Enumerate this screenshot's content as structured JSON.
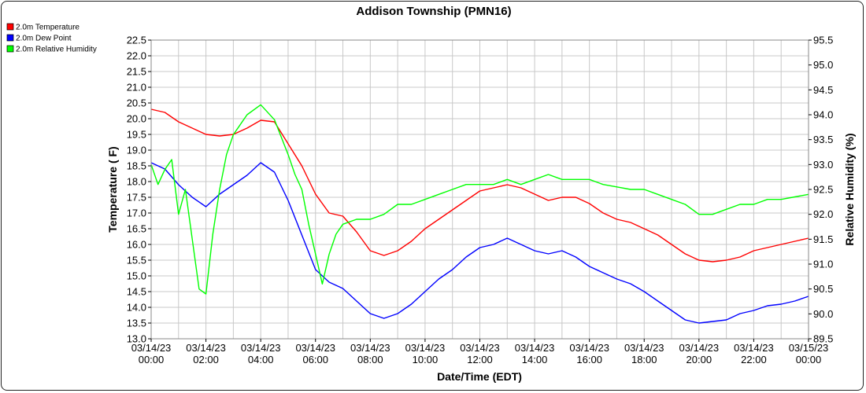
{
  "chart_data": {
    "type": "line",
    "title": "Addison Township (PMN16)",
    "xlabel": "Date/Time (EDT)",
    "ylabel_left": "Temperature ( F)",
    "ylabel_right": "Relative Humidity (%)",
    "ylim_left": [
      13.0,
      22.5
    ],
    "ylim_right": [
      89.5,
      95.5
    ],
    "y_left_ticks": [
      "13.0",
      "13.5",
      "14.0",
      "14.5",
      "15.0",
      "15.5",
      "16.0",
      "16.5",
      "17.0",
      "17.5",
      "18.0",
      "18.5",
      "19.0",
      "19.5",
      "20.0",
      "20.5",
      "21.0",
      "21.5",
      "22.0",
      "22.5"
    ],
    "y_right_ticks": [
      "89.5",
      "90.0",
      "90.5",
      "91.0",
      "91.5",
      "92.0",
      "92.5",
      "93.0",
      "93.5",
      "94.0",
      "94.5",
      "95.0",
      "95.5"
    ],
    "x_range_hours": [
      0,
      24
    ],
    "x_ticks": [
      {
        "hour": 0,
        "date": "03/14/23",
        "time": "00:00"
      },
      {
        "hour": 2,
        "date": "03/14/23",
        "time": "02:00"
      },
      {
        "hour": 4,
        "date": "03/14/23",
        "time": "04:00"
      },
      {
        "hour": 6,
        "date": "03/14/23",
        "time": "06:00"
      },
      {
        "hour": 8,
        "date": "03/14/23",
        "time": "08:00"
      },
      {
        "hour": 10,
        "date": "03/14/23",
        "time": "10:00"
      },
      {
        "hour": 12,
        "date": "03/14/23",
        "time": "12:00"
      },
      {
        "hour": 14,
        "date": "03/14/23",
        "time": "14:00"
      },
      {
        "hour": 16,
        "date": "03/14/23",
        "time": "16:00"
      },
      {
        "hour": 18,
        "date": "03/14/23",
        "time": "18:00"
      },
      {
        "hour": 20,
        "date": "03/14/23",
        "time": "20:00"
      },
      {
        "hour": 22,
        "date": "03/14/23",
        "time": "22:00"
      },
      {
        "hour": 24,
        "date": "03/15/23",
        "time": "00:00"
      }
    ],
    "grid": true,
    "legend_position": "top-left",
    "series": [
      {
        "name": "2.0m Temperature",
        "color": "#ff0000",
        "axis": "left",
        "x": [
          0,
          0.5,
          1,
          1.5,
          2,
          2.5,
          3,
          3.5,
          4,
          4.5,
          5,
          5.5,
          6,
          6.5,
          7,
          7.5,
          8,
          8.5,
          9,
          9.5,
          10,
          10.5,
          11,
          11.5,
          12,
          12.5,
          13,
          13.5,
          14,
          14.5,
          15,
          15.5,
          16,
          16.5,
          17,
          17.5,
          18,
          18.5,
          19,
          19.5,
          20,
          20.5,
          21,
          21.5,
          22,
          22.5,
          23,
          23.5,
          24
        ],
        "values": [
          20.3,
          20.2,
          19.9,
          19.7,
          19.5,
          19.45,
          19.5,
          19.7,
          19.95,
          19.9,
          19.2,
          18.5,
          17.6,
          17.0,
          16.9,
          16.4,
          15.8,
          15.65,
          15.8,
          16.1,
          16.5,
          16.8,
          17.1,
          17.4,
          17.7,
          17.8,
          17.9,
          17.8,
          17.6,
          17.4,
          17.5,
          17.5,
          17.3,
          17.0,
          16.8,
          16.7,
          16.5,
          16.3,
          16.0,
          15.7,
          15.5,
          15.45,
          15.5,
          15.6,
          15.8,
          15.9,
          16.0,
          16.1,
          16.2
        ]
      },
      {
        "name": "2.0m Dew Point",
        "color": "#0000ff",
        "axis": "left",
        "x": [
          0,
          0.5,
          1,
          1.5,
          2,
          2.5,
          3,
          3.5,
          4,
          4.5,
          5,
          5.5,
          6,
          6.5,
          7,
          7.5,
          8,
          8.5,
          9,
          9.5,
          10,
          10.5,
          11,
          11.5,
          12,
          12.5,
          13,
          13.5,
          14,
          14.5,
          15,
          15.5,
          16,
          16.5,
          17,
          17.5,
          18,
          18.5,
          19,
          19.5,
          20,
          20.5,
          21,
          21.5,
          22,
          22.5,
          23,
          23.5,
          24
        ],
        "values": [
          18.6,
          18.4,
          17.9,
          17.5,
          17.2,
          17.6,
          17.9,
          18.2,
          18.6,
          18.3,
          17.4,
          16.3,
          15.2,
          14.8,
          14.6,
          14.2,
          13.8,
          13.65,
          13.8,
          14.1,
          14.5,
          14.9,
          15.2,
          15.6,
          15.9,
          16.0,
          16.2,
          16.0,
          15.8,
          15.7,
          15.8,
          15.6,
          15.3,
          15.1,
          14.9,
          14.75,
          14.5,
          14.2,
          13.9,
          13.6,
          13.5,
          13.55,
          13.6,
          13.8,
          13.9,
          14.05,
          14.1,
          14.2,
          14.35
        ]
      },
      {
        "name": "2.0m Relative Humidity",
        "color": "#00ff00",
        "axis": "right",
        "x": [
          0,
          0.25,
          0.5,
          0.75,
          1,
          1.25,
          1.5,
          1.75,
          2,
          2.25,
          2.5,
          2.75,
          3,
          3.5,
          4,
          4.5,
          5,
          5.25,
          5.5,
          5.75,
          6,
          6.25,
          6.5,
          6.75,
          7,
          7.5,
          8,
          8.5,
          9,
          9.5,
          10,
          10.5,
          11,
          11.5,
          12,
          12.5,
          13,
          13.5,
          14,
          14.5,
          15,
          15.5,
          16,
          16.5,
          17,
          17.5,
          18,
          18.5,
          19,
          19.5,
          20,
          20.5,
          21,
          21.5,
          22,
          22.5,
          23,
          23.5,
          24
        ],
        "values": [
          93.0,
          92.6,
          92.9,
          93.1,
          92.0,
          92.5,
          91.5,
          90.5,
          90.4,
          91.6,
          92.5,
          93.2,
          93.6,
          94.0,
          94.2,
          93.9,
          93.2,
          92.8,
          92.5,
          91.8,
          91.2,
          90.6,
          91.2,
          91.6,
          91.8,
          91.9,
          91.9,
          92.0,
          92.2,
          92.2,
          92.3,
          92.4,
          92.5,
          92.6,
          92.6,
          92.6,
          92.7,
          92.6,
          92.7,
          92.8,
          92.7,
          92.7,
          92.7,
          92.6,
          92.55,
          92.5,
          92.5,
          92.4,
          92.3,
          92.2,
          92.0,
          92.0,
          92.1,
          92.2,
          92.2,
          92.3,
          92.3,
          92.35,
          92.4
        ]
      }
    ]
  }
}
